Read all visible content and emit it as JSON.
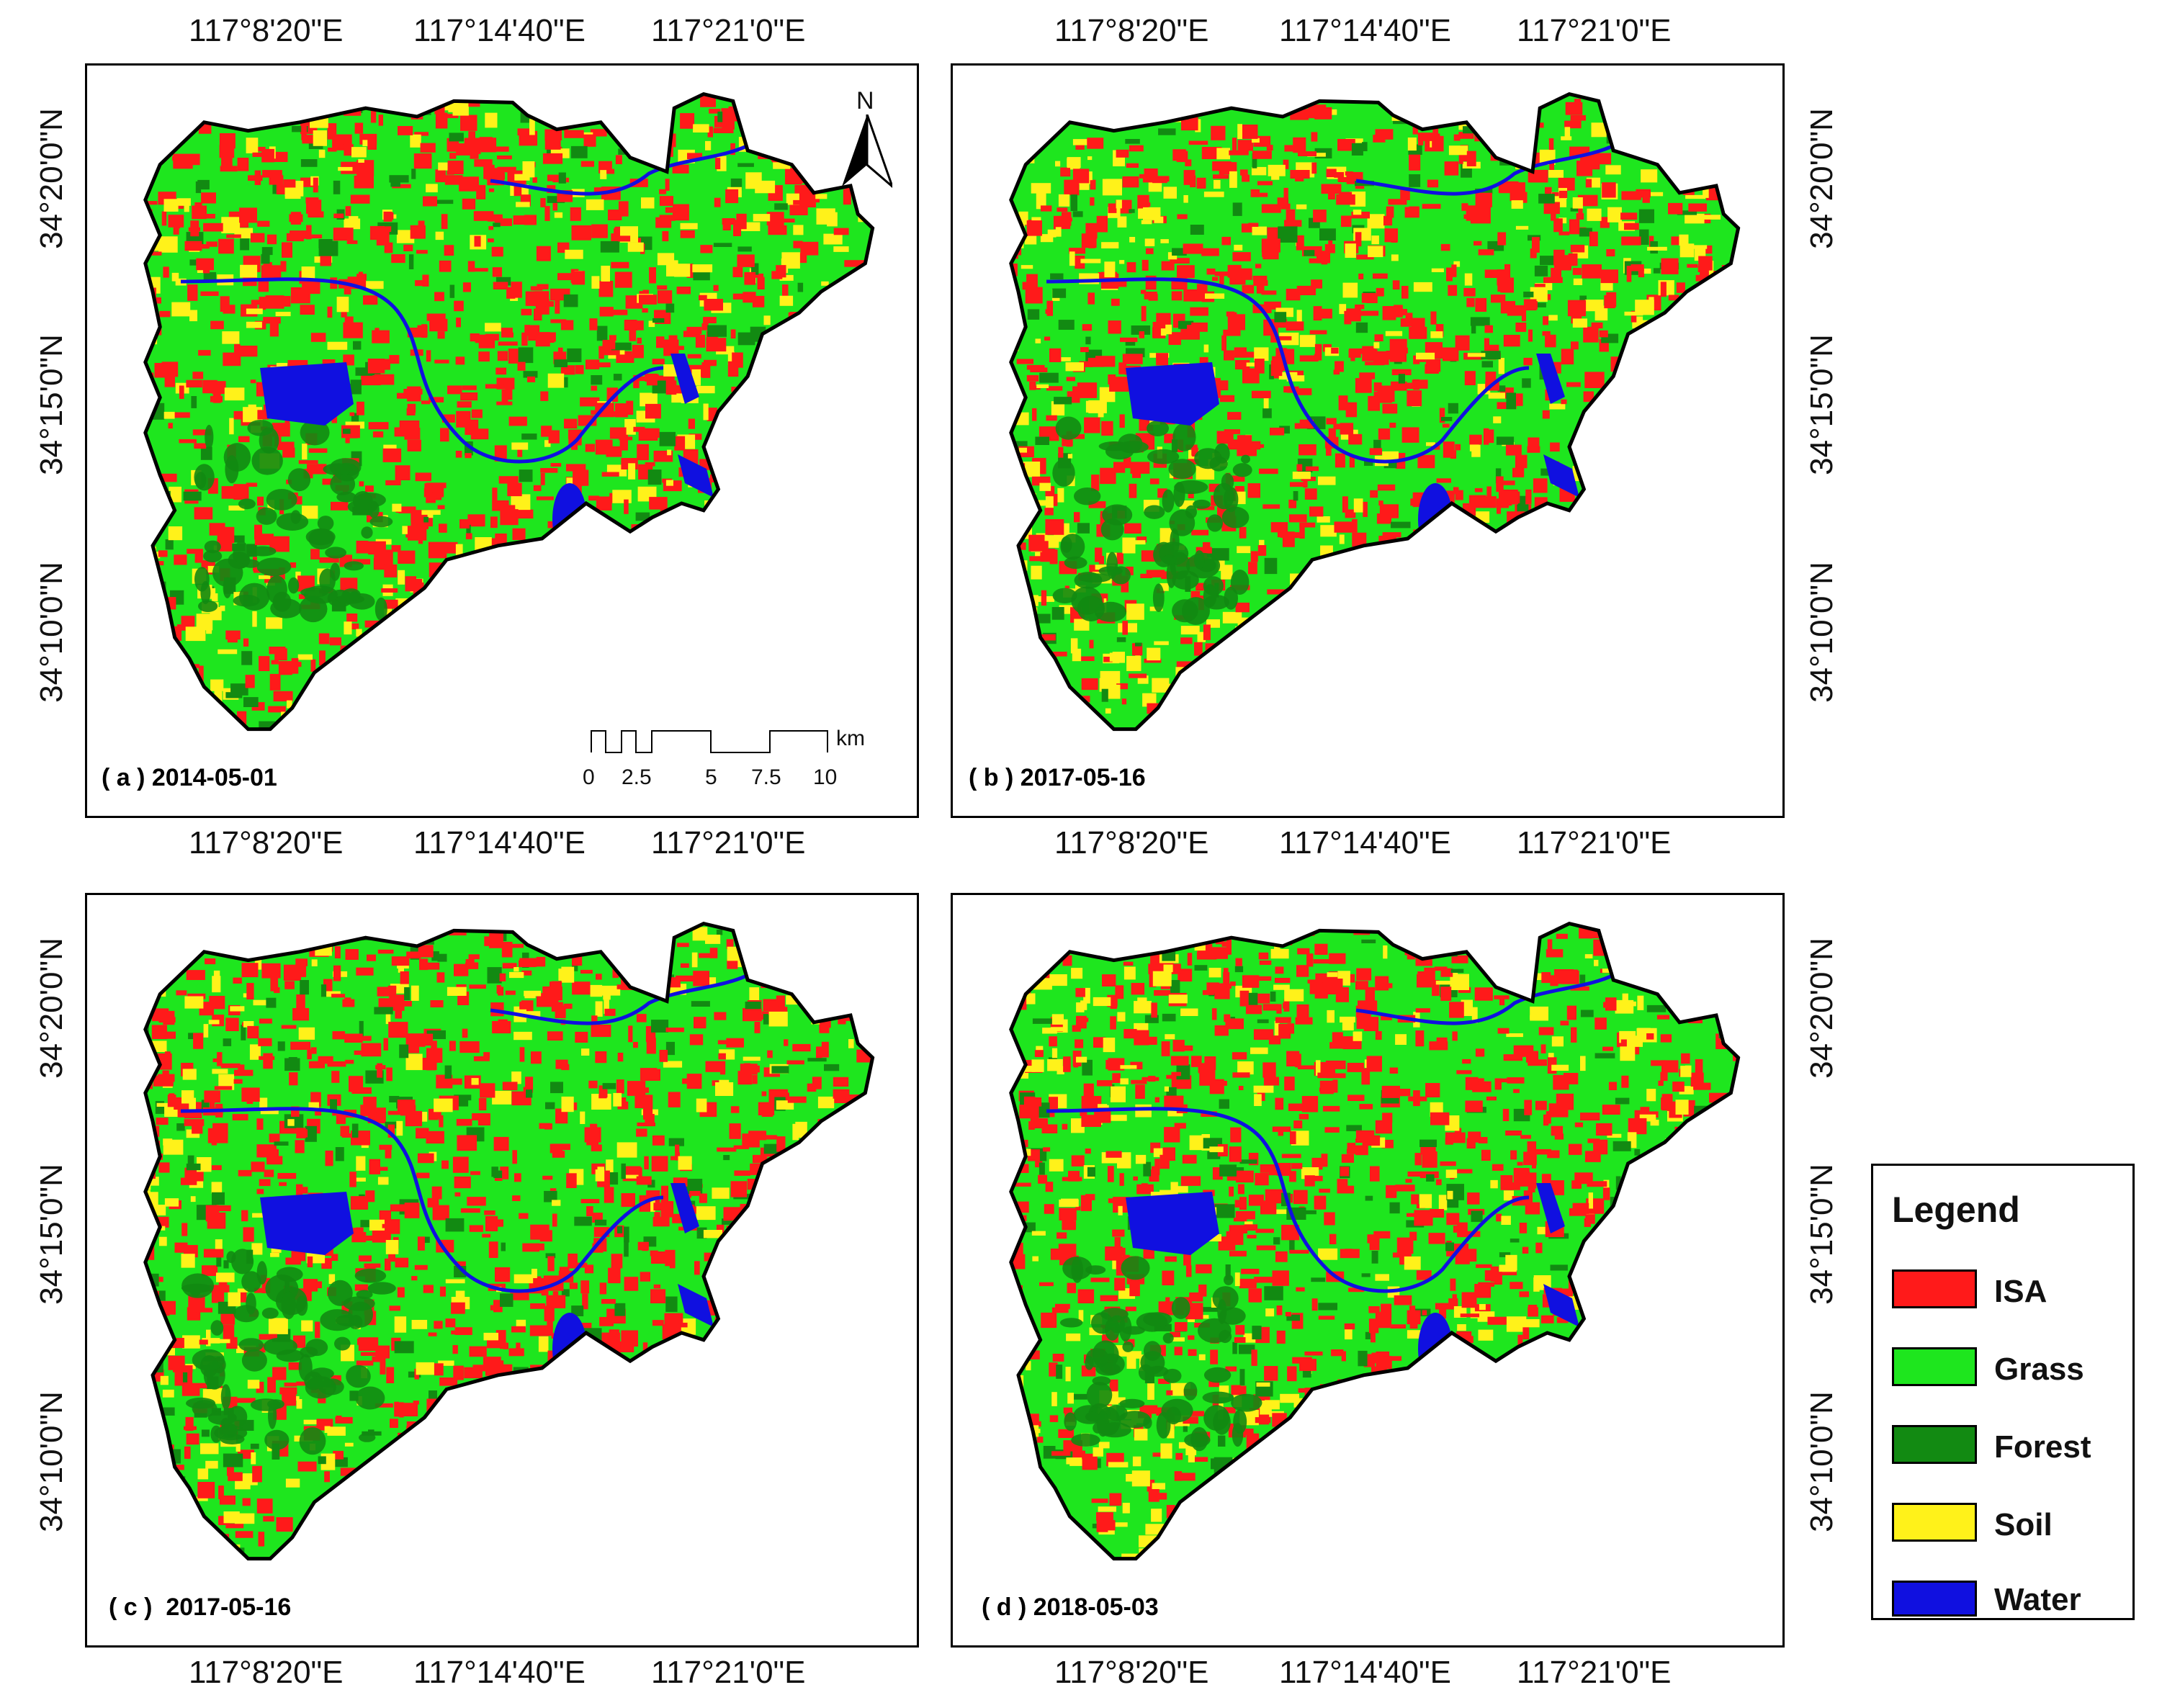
{
  "colors": {
    "isa": "#ff1a1a",
    "grass": "#1ee61e",
    "forest": "#128a12",
    "soil": "#fff21a",
    "water": "#1010e0"
  },
  "top_lon_labels": [
    "117°8'20\"E",
    "117°14'40\"E",
    "117°21'0\"E"
  ],
  "bottom_lon_labels": [
    "117°8'20\"E",
    "117°14'40\"E",
    "117°21'0\"E"
  ],
  "lat_labels": [
    "34°20'0\"N",
    "34°15'0\"N",
    "34°10'0\"N"
  ],
  "panels": [
    {
      "caption": "( a ) 2014-05-01"
    },
    {
      "caption": "( b ) 2017-05-16"
    },
    {
      "caption": "( c )  2017-05-16"
    },
    {
      "caption": "( d ) 2018-05-03"
    }
  ],
  "north_arrow": {
    "label": "N",
    "icon": "north-arrow-icon"
  },
  "scale_bar": {
    "unit": "km",
    "ticks": [
      "0",
      "2.5",
      "5",
      "7.5",
      "10"
    ]
  },
  "legend": {
    "title": "Legend",
    "items": [
      {
        "label": "ISA",
        "color": "#ff1a1a"
      },
      {
        "label": "Grass",
        "color": "#1ee61e"
      },
      {
        "label": "Forest",
        "color": "#128a12"
      },
      {
        "label": "Soil",
        "color": "#fff21a"
      },
      {
        "label": "Water",
        "color": "#1010e0"
      }
    ]
  }
}
